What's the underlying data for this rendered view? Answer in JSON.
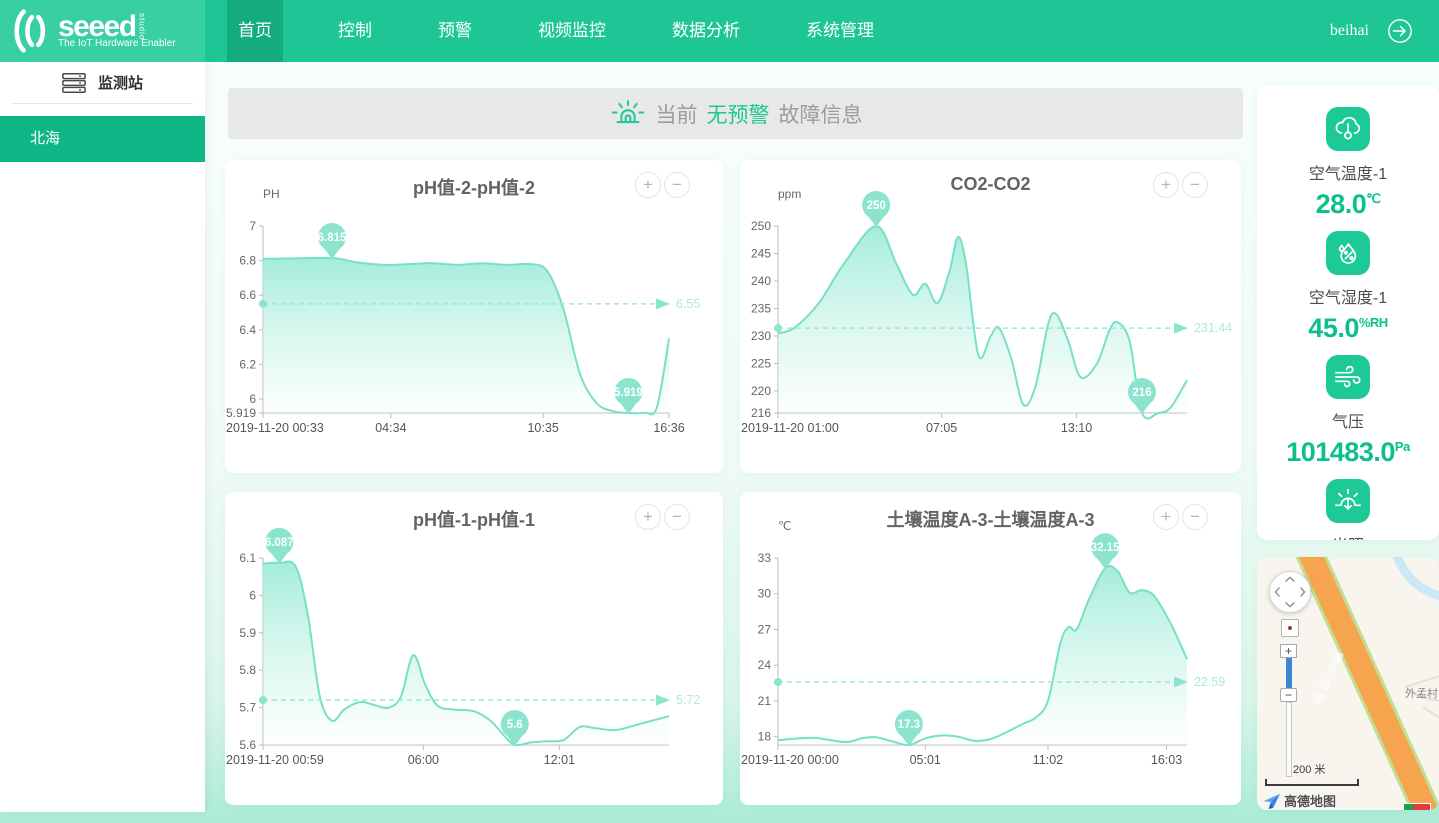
{
  "theme": {
    "primary": "#1fc695",
    "navbar_logo_bg": "#38cfa2",
    "active_menu_bg": "#14ab7e",
    "sidebar_active_bg": "#10b586",
    "chart_line": "#77e0c6",
    "chart_fill": "#a4ecd9",
    "marker_fill": "#8ce4cf",
    "value_green": "#0cc08c",
    "banner_bg": "#e8e8e8"
  },
  "navbar": {
    "logo": {
      "brand": "seeed",
      "studio": "studio",
      "tagline": "The IoT Hardware Enabler"
    },
    "menu": [
      {
        "label": "首页",
        "active": true
      },
      {
        "label": "控制",
        "active": false
      },
      {
        "label": "预警",
        "active": false
      },
      {
        "label": "视频监控",
        "active": false
      },
      {
        "label": "数据分析",
        "active": false
      },
      {
        "label": "系统管理",
        "active": false
      }
    ],
    "user": "beihai"
  },
  "sidebar": {
    "title": "监测站",
    "items": [
      {
        "label": "北海",
        "active": true
      }
    ]
  },
  "alert": {
    "prefix": "当前",
    "highlight": "无预警",
    "suffix": "故障信息"
  },
  "chart_controls": {
    "zoom_in": "+",
    "zoom_out": "−"
  },
  "chart_data": [
    {
      "type": "area",
      "title": "pH值-2-pH值-2",
      "unit": "PH",
      "ymin": 5.919,
      "ymax": 7,
      "y_ticks": [
        7,
        6.8,
        6.6,
        6.4,
        6.2,
        6,
        5.919
      ],
      "x_ticks": [
        {
          "pos": 0,
          "label": "2019-11-20 00:33"
        },
        {
          "pos": 0.315,
          "label": "04:34"
        },
        {
          "pos": 0.69,
          "label": "10:35"
        },
        {
          "pos": 1,
          "label": "16:36"
        }
      ],
      "points": [
        [
          0,
          6.81
        ],
        [
          0.05,
          6.812
        ],
        [
          0.17,
          6.815
        ],
        [
          0.23,
          6.79
        ],
        [
          0.3,
          6.775
        ],
        [
          0.36,
          6.78
        ],
        [
          0.42,
          6.785
        ],
        [
          0.48,
          6.775
        ],
        [
          0.54,
          6.785
        ],
        [
          0.6,
          6.775
        ],
        [
          0.66,
          6.78
        ],
        [
          0.7,
          6.74
        ],
        [
          0.74,
          6.52
        ],
        [
          0.78,
          6.15
        ],
        [
          0.82,
          5.98
        ],
        [
          0.86,
          5.93
        ],
        [
          0.9,
          5.919
        ],
        [
          0.94,
          5.921
        ],
        [
          0.97,
          5.95
        ],
        [
          1,
          6.35
        ]
      ],
      "avg": {
        "value": 6.55,
        "label": "6.55"
      },
      "max_marker": {
        "pos": 0.17,
        "value": 6.815,
        "label": "6.815"
      },
      "min_marker": {
        "pos": 0.9,
        "value": 5.919,
        "label": "5.919"
      }
    },
    {
      "type": "area",
      "title": "CO2-CO2",
      "unit": "ppm",
      "ymin": 216,
      "ymax": 250,
      "y_ticks": [
        250,
        245,
        240,
        235,
        230,
        225,
        220,
        216
      ],
      "x_ticks": [
        {
          "pos": 0,
          "label": "2019-11-20 01:00"
        },
        {
          "pos": 0.4,
          "label": "07:05"
        },
        {
          "pos": 0.73,
          "label": "13:10"
        }
      ],
      "points": [
        [
          0,
          230.5
        ],
        [
          0.04,
          231.5
        ],
        [
          0.1,
          236
        ],
        [
          0.16,
          243
        ],
        [
          0.24,
          250
        ],
        [
          0.29,
          243
        ],
        [
          0.33,
          237.5
        ],
        [
          0.36,
          239.5
        ],
        [
          0.39,
          236
        ],
        [
          0.42,
          242
        ],
        [
          0.44,
          248
        ],
        [
          0.46,
          243
        ],
        [
          0.49,
          226.5
        ],
        [
          0.52,
          230
        ],
        [
          0.54,
          231.5
        ],
        [
          0.57,
          226
        ],
        [
          0.6,
          217.5
        ],
        [
          0.63,
          221
        ],
        [
          0.66,
          232
        ],
        [
          0.68,
          234
        ],
        [
          0.71,
          229
        ],
        [
          0.74,
          222.5
        ],
        [
          0.78,
          225
        ],
        [
          0.81,
          231
        ],
        [
          0.83,
          232.5
        ],
        [
          0.86,
          229
        ],
        [
          0.89,
          216
        ],
        [
          0.93,
          216
        ],
        [
          0.96,
          217
        ],
        [
          1,
          222
        ]
      ],
      "avg": {
        "value": 231.44,
        "label": "231.44"
      },
      "max_marker": {
        "pos": 0.24,
        "value": 250,
        "label": "250"
      },
      "min_marker": {
        "pos": 0.89,
        "value": 216,
        "label": "216"
      }
    },
    {
      "type": "area",
      "title": "pH值-1-pH值-1",
      "unit": "",
      "ymin": 5.6,
      "ymax": 6.1,
      "y_ticks": [
        6.1,
        6,
        5.9,
        5.8,
        5.7,
        5.6
      ],
      "x_ticks": [
        {
          "pos": 0,
          "label": "2019-11-20 00:59"
        },
        {
          "pos": 0.395,
          "label": "06:00"
        },
        {
          "pos": 0.73,
          "label": "12:01"
        }
      ],
      "points": [
        [
          0,
          6.085
        ],
        [
          0.04,
          6.087
        ],
        [
          0.08,
          6.078
        ],
        [
          0.11,
          5.95
        ],
        [
          0.14,
          5.73
        ],
        [
          0.17,
          5.665
        ],
        [
          0.2,
          5.695
        ],
        [
          0.24,
          5.715
        ],
        [
          0.28,
          5.705
        ],
        [
          0.31,
          5.7
        ],
        [
          0.34,
          5.73
        ],
        [
          0.37,
          5.84
        ],
        [
          0.4,
          5.76
        ],
        [
          0.43,
          5.705
        ],
        [
          0.47,
          5.695
        ],
        [
          0.52,
          5.69
        ],
        [
          0.56,
          5.665
        ],
        [
          0.59,
          5.63
        ],
        [
          0.62,
          5.6
        ],
        [
          0.66,
          5.607
        ],
        [
          0.7,
          5.61
        ],
        [
          0.74,
          5.613
        ],
        [
          0.78,
          5.648
        ],
        [
          0.82,
          5.645
        ],
        [
          0.87,
          5.64
        ],
        [
          0.93,
          5.657
        ],
        [
          1,
          5.677
        ]
      ],
      "avg": {
        "value": 5.72,
        "label": "5.72"
      },
      "max_marker": {
        "pos": 0.04,
        "value": 6.087,
        "label": "6.087"
      },
      "min_marker": {
        "pos": 0.62,
        "value": 5.6,
        "label": "5.6"
      }
    },
    {
      "type": "area",
      "title": "土壤温度A-3-土壤温度A-3",
      "unit": "℃",
      "ymin": 17.3,
      "ymax": 33,
      "y_ticks": [
        33,
        30,
        27,
        24,
        21,
        18
      ],
      "x_ticks": [
        {
          "pos": 0,
          "label": "2019-11-20 00:00"
        },
        {
          "pos": 0.36,
          "label": "05:01"
        },
        {
          "pos": 0.66,
          "label": "11:02"
        },
        {
          "pos": 0.95,
          "label": "16:03"
        }
      ],
      "points": [
        [
          0,
          17.7
        ],
        [
          0.05,
          17.85
        ],
        [
          0.09,
          17.9
        ],
        [
          0.13,
          17.7
        ],
        [
          0.17,
          17.55
        ],
        [
          0.21,
          17.9
        ],
        [
          0.24,
          17.95
        ],
        [
          0.28,
          17.6
        ],
        [
          0.32,
          17.3
        ],
        [
          0.36,
          17.85
        ],
        [
          0.4,
          18.1
        ],
        [
          0.44,
          18
        ],
        [
          0.48,
          17.65
        ],
        [
          0.52,
          17.8
        ],
        [
          0.56,
          18.4
        ],
        [
          0.6,
          19.1
        ],
        [
          0.63,
          19.6
        ],
        [
          0.66,
          21
        ],
        [
          0.69,
          25.8
        ],
        [
          0.71,
          27.2
        ],
        [
          0.73,
          27
        ],
        [
          0.76,
          29.5
        ],
        [
          0.8,
          32.15
        ],
        [
          0.83,
          31.9
        ],
        [
          0.86,
          30.1
        ],
        [
          0.89,
          30.3
        ],
        [
          0.92,
          29.8
        ],
        [
          0.96,
          27.5
        ],
        [
          1,
          24.5
        ]
      ],
      "avg": {
        "value": 22.59,
        "label": "22.59"
      },
      "max_marker": {
        "pos": 0.8,
        "value": 32.15,
        "label": "32.15"
      },
      "min_marker": {
        "pos": 0.32,
        "value": 17.3,
        "label": "17.3"
      }
    }
  ],
  "sensors": [
    {
      "name": "空气温度-1",
      "value": "28.0",
      "unit": "℃",
      "icon": "air-temperature-icon"
    },
    {
      "name": "空气湿度-1",
      "value": "45.0",
      "unit": "%RH",
      "icon": "air-humidity-icon"
    },
    {
      "name": "气压",
      "value": "101483.0",
      "unit": "Pa",
      "icon": "air-pressure-icon"
    },
    {
      "name": "光照",
      "value": "",
      "unit": "",
      "icon": "light-icon"
    }
  ],
  "map": {
    "scale_label": "200 米",
    "attribution": "高德地图",
    "road_label": "溧宁高速",
    "village_label": "外孟村"
  }
}
